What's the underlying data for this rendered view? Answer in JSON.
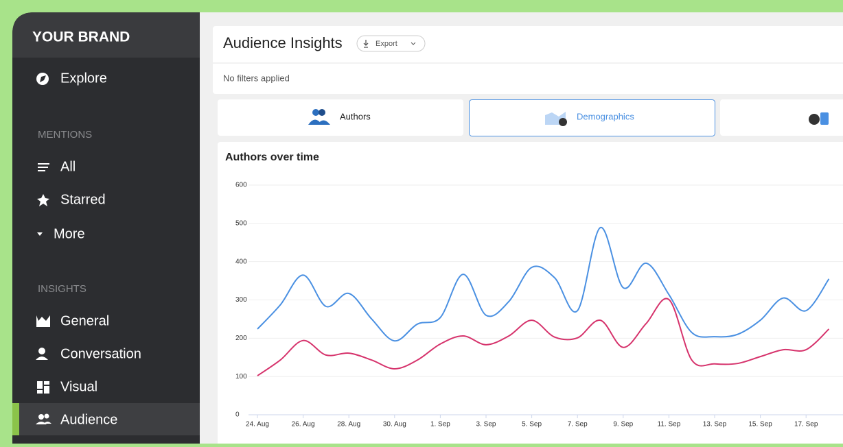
{
  "sidebar": {
    "brand": "YOUR BRAND",
    "explore": "Explore",
    "sections": [
      {
        "heading": "MENTIONS",
        "items": [
          "All",
          "Starred",
          "More"
        ]
      },
      {
        "heading": "INSIGHTS",
        "items": [
          "General",
          "Conversation",
          "Visual",
          "Audience"
        ]
      }
    ]
  },
  "header": {
    "title": "Audience Insights",
    "export": "Export",
    "filters": "No filters applied"
  },
  "tabs": [
    "Authors",
    "Demographics"
  ],
  "chart_data": {
    "type": "line",
    "title": "Authors over time",
    "categories": [
      "24. Aug",
      null,
      "26. Aug",
      null,
      "28. Aug",
      null,
      "30. Aug",
      null,
      "1. Sep",
      null,
      "3. Sep",
      null,
      "5. Sep",
      null,
      "7. Sep",
      null,
      "9. Sep",
      null,
      "11. Sep",
      null,
      "13. Sep",
      null,
      "15. Sep",
      null,
      "17. Sep",
      null
    ],
    "series": [
      {
        "color": "#4a90e2",
        "values": [
          224,
          287,
          365,
          283,
          317,
          250,
          193,
          237,
          254,
          367,
          260,
          296,
          385,
          358,
          272,
          489,
          332,
          396,
          314,
          215,
          204,
          210,
          247,
          305,
          272,
          355
        ]
      },
      {
        "color": "#d6336c",
        "values": [
          102,
          143,
          194,
          156,
          161,
          143,
          120,
          143,
          185,
          206,
          183,
          206,
          247,
          203,
          201,
          247,
          176,
          238,
          301,
          143,
          133,
          134,
          152,
          170,
          170,
          224
        ]
      }
    ],
    "ylim": [
      0,
      600
    ],
    "yticks": [
      0,
      100,
      200,
      300,
      400,
      500,
      600
    ],
    "grid": true
  }
}
